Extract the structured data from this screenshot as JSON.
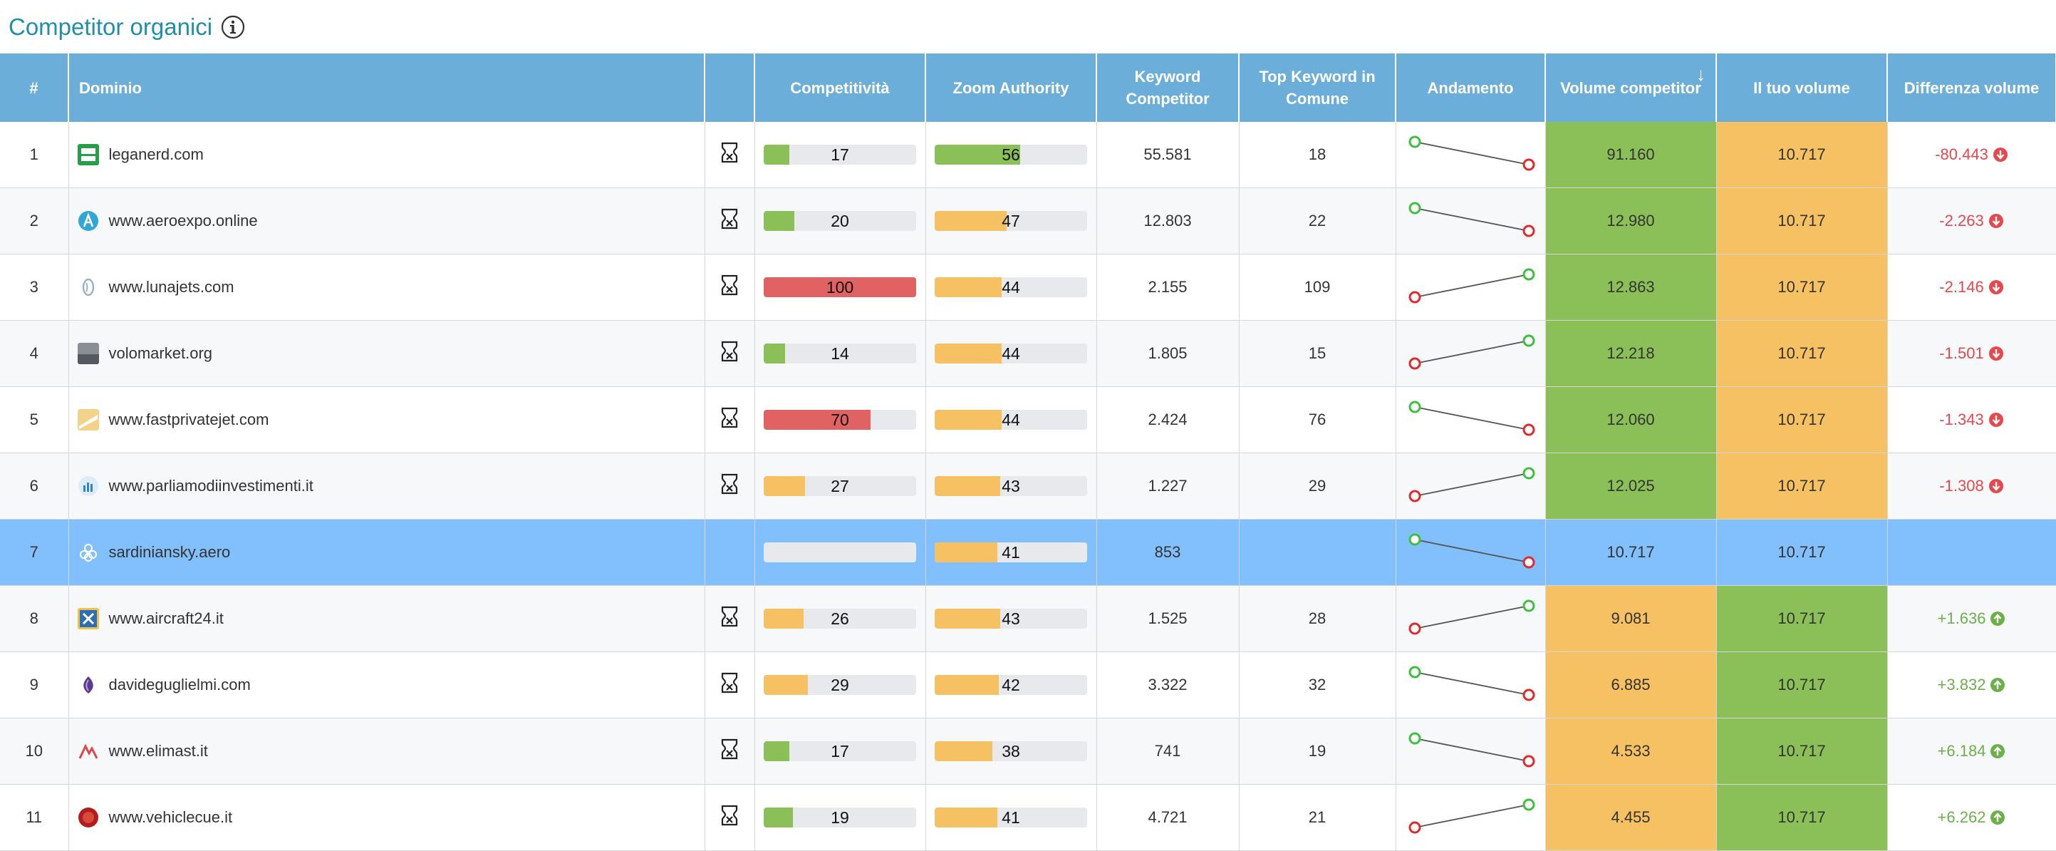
{
  "header": {
    "title": "Competitor organici"
  },
  "columns": {
    "num": "#",
    "domain": "Dominio",
    "competitivity": "Competitività",
    "zoom_authority": "Zoom Authority",
    "keyword_competitor": "Keyword Competitor",
    "top_keyword": "Top Keyword in Comune",
    "trend": "Andamento",
    "volume_competitor": "Volume competitor",
    "your_volume": "Il tuo volume",
    "diff_volume": "Differenza volume"
  },
  "colors": {
    "green": "#8bc058",
    "orange": "#f6c163",
    "red": "#e06262",
    "header_bg": "#6aaed9",
    "own_row": "#82c0fd",
    "title": "#1f8fa8"
  },
  "rows": [
    {
      "num": "1",
      "domain": "leganerd.com",
      "icon": "leganerd-favicon",
      "competitivity": 17,
      "comp_color": "green",
      "zoom": 56,
      "zoom_color": "green",
      "kw": "55.581",
      "top": "18",
      "trend": "down",
      "vol_comp": "91.160",
      "vol_comp_color": "green",
      "your_vol": "10.717",
      "your_vol_color": "orange",
      "diff": "-80.443",
      "diff_dir": "neg",
      "own": false
    },
    {
      "num": "2",
      "domain": "www.aeroexpo.online",
      "icon": "aeroexpo-favicon",
      "competitivity": 20,
      "comp_color": "green",
      "zoom": 47,
      "zoom_color": "orange",
      "kw": "12.803",
      "top": "22",
      "trend": "down",
      "vol_comp": "12.980",
      "vol_comp_color": "green",
      "your_vol": "10.717",
      "your_vol_color": "orange",
      "diff": "-2.263",
      "diff_dir": "neg",
      "own": false
    },
    {
      "num": "3",
      "domain": "www.lunajets.com",
      "icon": "lunajets-favicon",
      "competitivity": 100,
      "comp_color": "red",
      "zoom": 44,
      "zoom_color": "orange",
      "kw": "2.155",
      "top": "109",
      "trend": "up",
      "vol_comp": "12.863",
      "vol_comp_color": "green",
      "your_vol": "10.717",
      "your_vol_color": "orange",
      "diff": "-2.146",
      "diff_dir": "neg",
      "own": false
    },
    {
      "num": "4",
      "domain": "volomarket.org",
      "icon": "volomarket-favicon",
      "competitivity": 14,
      "comp_color": "green",
      "zoom": 44,
      "zoom_color": "orange",
      "kw": "1.805",
      "top": "15",
      "trend": "up",
      "vol_comp": "12.218",
      "vol_comp_color": "green",
      "your_vol": "10.717",
      "your_vol_color": "orange",
      "diff": "-1.501",
      "diff_dir": "neg",
      "own": false
    },
    {
      "num": "5",
      "domain": "www.fastprivatejet.com",
      "icon": "fastprivatejet-favicon",
      "competitivity": 70,
      "comp_color": "red",
      "zoom": 44,
      "zoom_color": "orange",
      "kw": "2.424",
      "top": "76",
      "trend": "down",
      "vol_comp": "12.060",
      "vol_comp_color": "green",
      "your_vol": "10.717",
      "your_vol_color": "orange",
      "diff": "-1.343",
      "diff_dir": "neg",
      "own": false
    },
    {
      "num": "6",
      "domain": "www.parliamodiinvestimenti.it",
      "icon": "parliamodiinvestimenti-favicon",
      "competitivity": 27,
      "comp_color": "orange",
      "zoom": 43,
      "zoom_color": "orange",
      "kw": "1.227",
      "top": "29",
      "trend": "up",
      "vol_comp": "12.025",
      "vol_comp_color": "green",
      "your_vol": "10.717",
      "your_vol_color": "orange",
      "diff": "-1.308",
      "diff_dir": "neg",
      "own": false
    },
    {
      "num": "7",
      "domain": "sardiniansky.aero",
      "icon": "sardiniansky-favicon",
      "competitivity": null,
      "comp_color": "none",
      "zoom": 41,
      "zoom_color": "orange",
      "kw": "853",
      "top": "",
      "trend": "down",
      "vol_comp": "10.717",
      "vol_comp_color": "own",
      "your_vol": "10.717",
      "your_vol_color": "own",
      "diff": "",
      "diff_dir": "none",
      "own": true
    },
    {
      "num": "8",
      "domain": "www.aircraft24.it",
      "icon": "aircraft24-favicon",
      "competitivity": 26,
      "comp_color": "orange",
      "zoom": 43,
      "zoom_color": "orange",
      "kw": "1.525",
      "top": "28",
      "trend": "up",
      "vol_comp": "9.081",
      "vol_comp_color": "orange",
      "your_vol": "10.717",
      "your_vol_color": "green",
      "diff": "+1.636",
      "diff_dir": "pos",
      "own": false
    },
    {
      "num": "9",
      "domain": "davideguglielmi.com",
      "icon": "davideguglielmi-favicon",
      "competitivity": 29,
      "comp_color": "orange",
      "zoom": 42,
      "zoom_color": "orange",
      "kw": "3.322",
      "top": "32",
      "trend": "down",
      "vol_comp": "6.885",
      "vol_comp_color": "orange",
      "your_vol": "10.717",
      "your_vol_color": "green",
      "diff": "+3.832",
      "diff_dir": "pos",
      "own": false
    },
    {
      "num": "10",
      "domain": "www.elimast.it",
      "icon": "elimast-favicon",
      "competitivity": 17,
      "comp_color": "green",
      "zoom": 38,
      "zoom_color": "orange",
      "kw": "741",
      "top": "19",
      "trend": "down",
      "vol_comp": "4.533",
      "vol_comp_color": "orange",
      "your_vol": "10.717",
      "your_vol_color": "green",
      "diff": "+6.184",
      "diff_dir": "pos",
      "own": false
    },
    {
      "num": "11",
      "domain": "www.vehiclecue.it",
      "icon": "vehiclecue-favicon",
      "competitivity": 19,
      "comp_color": "green",
      "zoom": 41,
      "zoom_color": "orange",
      "kw": "4.721",
      "top": "21",
      "trend": "up",
      "vol_comp": "4.455",
      "vol_comp_color": "orange",
      "your_vol": "10.717",
      "your_vol_color": "green",
      "diff": "+6.262",
      "diff_dir": "pos",
      "own": false
    }
  ]
}
